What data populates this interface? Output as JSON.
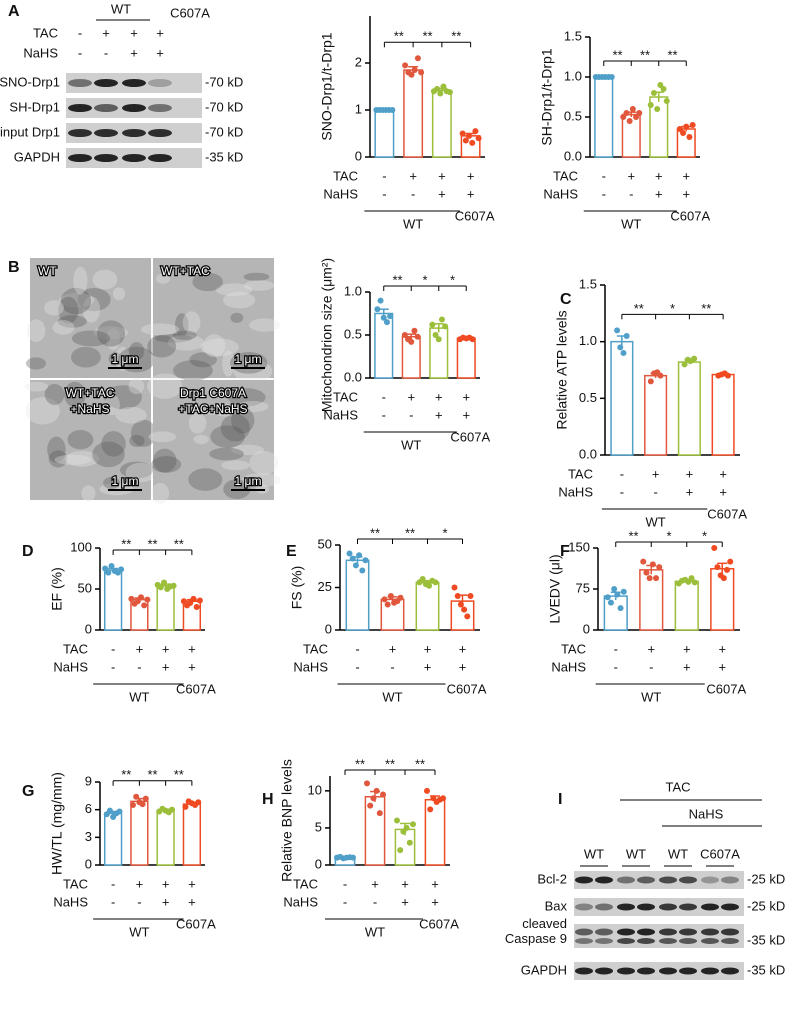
{
  "panel_labels": [
    "A",
    "B",
    "C",
    "D",
    "E",
    "F",
    "G",
    "H",
    "I"
  ],
  "blot_a": {
    "wt": "WT",
    "c607a": "C607A",
    "rows": [
      {
        "label": "TAC",
        "signs": [
          "-",
          "+",
          "+",
          "+"
        ]
      },
      {
        "label": "NaHS",
        "signs": [
          "-",
          "-",
          "+",
          "+"
        ]
      }
    ],
    "bands": [
      {
        "label": "SNO-Drp1",
        "kd": "-70 kD"
      },
      {
        "label": "SH-Drp1",
        "kd": "-70 kD"
      },
      {
        "label": "input Drp1",
        "kd": "-70 kD"
      },
      {
        "label": "GAPDH",
        "kd": "-35 kD"
      }
    ]
  },
  "em_images": {
    "tiles": [
      [
        "WT"
      ],
      [
        "WT+TAC"
      ],
      [
        "WT+TAC",
        "+NaHS"
      ],
      [
        "Drp1 C607A",
        "+TAC+NaHS"
      ]
    ],
    "scale": "1 μm"
  },
  "blot_i": {
    "tac": "TAC",
    "nahs": "NaHS",
    "lanes": [
      "WT",
      "WT",
      "WT",
      "C607A"
    ],
    "bands": [
      {
        "label": [
          "Bcl-2"
        ],
        "kd": "-25 kD"
      },
      {
        "label": [
          "Bax"
        ],
        "kd": "-25 kD"
      },
      {
        "label": [
          "cleaved",
          "Caspase 9"
        ],
        "kd": "-35 kD"
      },
      {
        "label": [
          "GAPDH"
        ],
        "kd": "-35 kD"
      }
    ]
  },
  "chart_data": [
    {
      "type": "bar",
      "ylabel": "SNO-Drp1/t-Drp1",
      "ylim": [
        0,
        3
      ],
      "yticks": [
        0,
        1,
        2
      ],
      "values": [
        1.0,
        1.85,
        1.42,
        0.45
      ],
      "errors": [
        0.01,
        0.07,
        0.04,
        0.05
      ],
      "points": [
        [
          1,
          1,
          1,
          1,
          1,
          1
        ],
        [
          1.95,
          1.8,
          1.75,
          1.85,
          2.1,
          1.8
        ],
        [
          1.4,
          1.45,
          1.35,
          1.5,
          1.4,
          1.38
        ],
        [
          0.5,
          0.35,
          0.45,
          0.3,
          0.55,
          0.4
        ]
      ],
      "colors": [
        "#4f9fc9",
        "#e0573d",
        "#9bbf3b",
        "#ef4a22"
      ],
      "significance": [
        "**",
        "**",
        "**"
      ],
      "rows": [
        {
          "label": "TAC",
          "signs": [
            "-",
            "+",
            "+",
            "+"
          ]
        },
        {
          "label": "NaHS",
          "signs": [
            "-",
            "-",
            "+",
            "+"
          ]
        }
      ],
      "groups": [
        "WT",
        "C607A"
      ]
    },
    {
      "type": "bar",
      "ylabel": "SH-Drp1/t-Drp1",
      "ylim": [
        0,
        1.5
      ],
      "yticks": [
        {
          "value": 0,
          "label": "0.0"
        },
        {
          "value": 0.5,
          "label": "0.5"
        },
        {
          "value": 1,
          "label": "1.0"
        },
        {
          "value": 1.5,
          "label": "1.5"
        }
      ],
      "values": [
        1.0,
        0.53,
        0.75,
        0.35
      ],
      "errors": [
        0.005,
        0.03,
        0.06,
        0.03
      ],
      "points": [
        [
          1,
          1,
          1,
          1,
          1,
          1
        ],
        [
          0.5,
          0.55,
          0.45,
          0.6,
          0.5,
          0.55
        ],
        [
          0.65,
          0.8,
          0.6,
          0.9,
          0.85,
          0.7
        ],
        [
          0.35,
          0.3,
          0.38,
          0.25,
          0.4
        ]
      ],
      "colors": [
        "#4f9fc9",
        "#e0573d",
        "#9bbf3b",
        "#ef4a22"
      ],
      "significance": [
        "**",
        "**",
        "**"
      ],
      "rows": [
        {
          "label": "TAC",
          "signs": [
            "-",
            "+",
            "+",
            "+"
          ]
        },
        {
          "label": "NaHS",
          "signs": [
            "-",
            "-",
            "+",
            "+"
          ]
        }
      ],
      "groups": [
        "WT",
        "C607A"
      ]
    },
    {
      "type": "bar",
      "ylabel": "Mitochondrion size (μm²)",
      "ylim": [
        0,
        1
      ],
      "yticks": [
        {
          "value": 0,
          "label": "0.0"
        },
        {
          "value": 0.5,
          "label": "0.5"
        },
        {
          "value": 1,
          "label": "1.0"
        }
      ],
      "values": [
        0.75,
        0.48,
        0.58,
        0.46
      ],
      "errors": [
        0.05,
        0.03,
        0.05,
        0.01
      ],
      "points": [
        [
          0.8,
          0.9,
          0.7,
          0.65,
          0.72
        ],
        [
          0.5,
          0.45,
          0.42,
          0.55,
          0.48
        ],
        [
          0.62,
          0.5,
          0.45,
          0.68,
          0.6
        ],
        [
          0.45,
          0.47,
          0.46,
          0.47,
          0.45
        ]
      ],
      "colors": [
        "#4f9fc9",
        "#e0573d",
        "#9bbf3b",
        "#ef4a22"
      ],
      "significance": [
        "**",
        "*",
        "*"
      ],
      "rows": [
        {
          "label": "TAC",
          "signs": [
            "-",
            "+",
            "+",
            "+"
          ]
        },
        {
          "label": "NaHS",
          "signs": [
            "-",
            "-",
            "+",
            "+"
          ]
        }
      ],
      "groups": [
        "WT",
        "C607A"
      ]
    },
    {
      "type": "bar",
      "ylabel": "Relative ATP levels",
      "ylim": [
        0,
        1.5
      ],
      "yticks": [
        {
          "value": 0,
          "label": "0.0"
        },
        {
          "value": 0.5,
          "label": "0.5"
        },
        {
          "value": 1,
          "label": "1.0"
        },
        {
          "value": 1.5,
          "label": "1.5"
        }
      ],
      "values": [
        1.0,
        0.7,
        0.82,
        0.71
      ],
      "errors": [
        0.05,
        0.02,
        0.02,
        0.01
      ],
      "points": [
        [
          1.1,
          0.95,
          0.9,
          1.05
        ],
        [
          0.65,
          0.72,
          0.73,
          0.7
        ],
        [
          0.8,
          0.84,
          0.83,
          0.85
        ],
        [
          0.7,
          0.71,
          0.72,
          0.7
        ]
      ],
      "colors": [
        "#4f9fc9",
        "#e0573d",
        "#9bbf3b",
        "#ef4a22"
      ],
      "significance": [
        "**",
        "*",
        "**"
      ],
      "rows": [
        {
          "label": "TAC",
          "signs": [
            "-",
            "+",
            "+",
            "+"
          ]
        },
        {
          "label": "NaHS",
          "signs": [
            "-",
            "-",
            "+",
            "+"
          ]
        }
      ],
      "groups": [
        "WT",
        "C607A"
      ]
    },
    {
      "type": "bar",
      "ylabel": "EF (%)",
      "ylim": [
        0,
        100
      ],
      "yticks": [
        0,
        50,
        100
      ],
      "values": [
        73,
        37,
        54,
        35
      ],
      "errors": [
        2,
        2,
        2,
        2
      ],
      "points": [
        [
          75,
          70,
          78,
          72,
          70,
          74
        ],
        [
          38,
          32,
          35,
          40,
          30,
          37
        ],
        [
          55,
          52,
          58,
          50,
          53,
          54
        ],
        [
          35,
          30,
          33,
          38,
          28,
          36
        ]
      ],
      "colors": [
        "#4f9fc9",
        "#e0573d",
        "#9bbf3b",
        "#ef4a22"
      ],
      "significance": [
        "**",
        "**",
        "**"
      ],
      "rows": [
        {
          "label": "TAC",
          "signs": [
            "-",
            "+",
            "+",
            "+"
          ]
        },
        {
          "label": "NaHS",
          "signs": [
            "-",
            "-",
            "+",
            "+"
          ]
        }
      ],
      "groups": [
        "WT",
        "C607A"
      ]
    },
    {
      "type": "bar",
      "ylabel": "FS (%)",
      "ylim": [
        0,
        50
      ],
      "yticks": [
        0,
        25,
        50
      ],
      "values": [
        41,
        18,
        28,
        17
      ],
      "errors": [
        2,
        1.5,
        1,
        3.5
      ],
      "points": [
        [
          45,
          42,
          38,
          44,
          35,
          41
        ],
        [
          18,
          15,
          20,
          16,
          17,
          19
        ],
        [
          28,
          30,
          27,
          26,
          29,
          28
        ],
        [
          25,
          20,
          15,
          12,
          8,
          20
        ]
      ],
      "colors": [
        "#4f9fc9",
        "#e0573d",
        "#9bbf3b",
        "#ef4a22"
      ],
      "significance": [
        "**",
        "**",
        "*"
      ],
      "rows": [
        {
          "label": "TAC",
          "signs": [
            "-",
            "+",
            "+",
            "+"
          ]
        },
        {
          "label": "NaHS",
          "signs": [
            "-",
            "-",
            "+",
            "+"
          ]
        }
      ],
      "groups": [
        "WT",
        "C607A"
      ]
    },
    {
      "type": "bar",
      "ylabel": "LVEDV (μl)",
      "ylim": [
        0,
        150
      ],
      "yticks": [
        0,
        75,
        150
      ],
      "values": [
        62,
        110,
        89,
        112
      ],
      "errors": [
        7,
        8,
        3,
        10
      ],
      "points": [
        [
          60,
          50,
          75,
          65,
          40,
          70
        ],
        [
          125,
          105,
          95,
          120,
          95,
          115
        ],
        [
          85,
          90,
          92,
          88,
          95,
          87
        ],
        [
          150,
          115,
          100,
          95,
          110,
          125
        ]
      ],
      "colors": [
        "#4f9fc9",
        "#e0573d",
        "#9bbf3b",
        "#ef4a22"
      ],
      "significance": [
        "**",
        "*",
        "*"
      ],
      "rows": [
        {
          "label": "TAC",
          "signs": [
            "-",
            "+",
            "+",
            "+"
          ]
        },
        {
          "label": "NaHS",
          "signs": [
            "-",
            "-",
            "+",
            "+"
          ]
        }
      ],
      "groups": [
        "WT",
        "C607A"
      ]
    },
    {
      "type": "bar",
      "ylabel": "HW/TL (mg/mm)",
      "ylim": [
        0,
        9
      ],
      "yticks": [
        0,
        3,
        6,
        9
      ],
      "values": [
        5.6,
        6.9,
        5.9,
        6.6
      ],
      "errors": [
        0.2,
        0.3,
        0.15,
        0.2
      ],
      "points": [
        [
          5.5,
          5.9,
          5.2,
          5.6,
          5.8
        ],
        [
          6.5,
          7.4,
          6.8,
          6.6,
          7.2
        ],
        [
          5.8,
          6.1,
          5.9,
          5.7,
          6.0
        ],
        [
          6.3,
          6.9,
          6.7,
          6.5,
          6.8
        ]
      ],
      "colors": [
        "#4f9fc9",
        "#e0573d",
        "#9bbf3b",
        "#ef4a22"
      ],
      "significance": [
        "**",
        "**",
        "**"
      ],
      "rows": [
        {
          "label": "TAC",
          "signs": [
            "-",
            "+",
            "+",
            "+"
          ]
        },
        {
          "label": "NaHS",
          "signs": [
            "-",
            "-",
            "+",
            "+"
          ]
        }
      ],
      "groups": [
        "WT",
        "C607A"
      ]
    },
    {
      "type": "bar",
      "ylabel": "Relative BNP levels",
      "ylim": [
        0,
        12
      ],
      "yticks": [
        0,
        5,
        10
      ],
      "values": [
        1.0,
        9.2,
        4.8,
        8.8
      ],
      "errors": [
        0.1,
        0.7,
        0.8,
        0.5
      ],
      "points": [
        [
          1,
          1.1,
          0.9,
          1,
          1.05,
          1
        ],
        [
          11,
          8,
          9,
          10,
          7,
          9.5
        ],
        [
          6,
          2,
          4.5,
          5,
          3,
          5.5
        ],
        [
          10,
          7.5,
          9,
          8.5,
          8.8,
          9
        ]
      ],
      "colors": [
        "#4f9fc9",
        "#e0573d",
        "#9bbf3b",
        "#ef4a22"
      ],
      "significance": [
        "**",
        "**",
        "**"
      ],
      "rows": [
        {
          "label": "TAC",
          "signs": [
            "-",
            "+",
            "+",
            "+"
          ]
        },
        {
          "label": "NaHS",
          "signs": [
            "-",
            "-",
            "+",
            "+"
          ]
        }
      ],
      "groups": [
        "WT",
        "C607A"
      ]
    }
  ]
}
